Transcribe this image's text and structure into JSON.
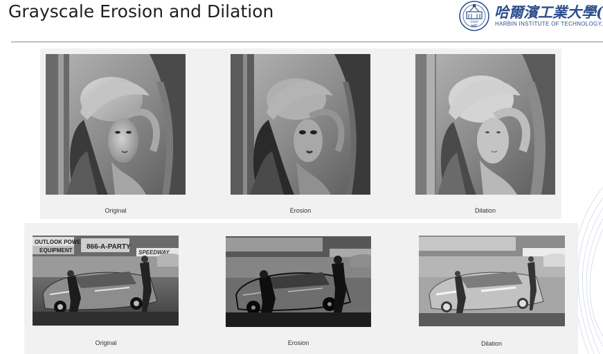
{
  "slide": {
    "title": "Grayscale Erosion and Dilation"
  },
  "logo": {
    "name_cn": "哈爾濱工業大學(深",
    "name_en": "HARBIN INSTITUTE OF TECHNOLOGY, S",
    "seal_year": "1920",
    "seal_text": "HIT"
  },
  "row1": {
    "captions": [
      "Original",
      "Erosion",
      "Dilation"
    ]
  },
  "row2": {
    "captions": [
      "Original",
      "Erosion",
      "Dilation"
    ],
    "banner_text": [
      "OUTLOOK POWER",
      "EQUIPMENT",
      "866-A-PARTY",
      "SPEEDWAY"
    ]
  }
}
